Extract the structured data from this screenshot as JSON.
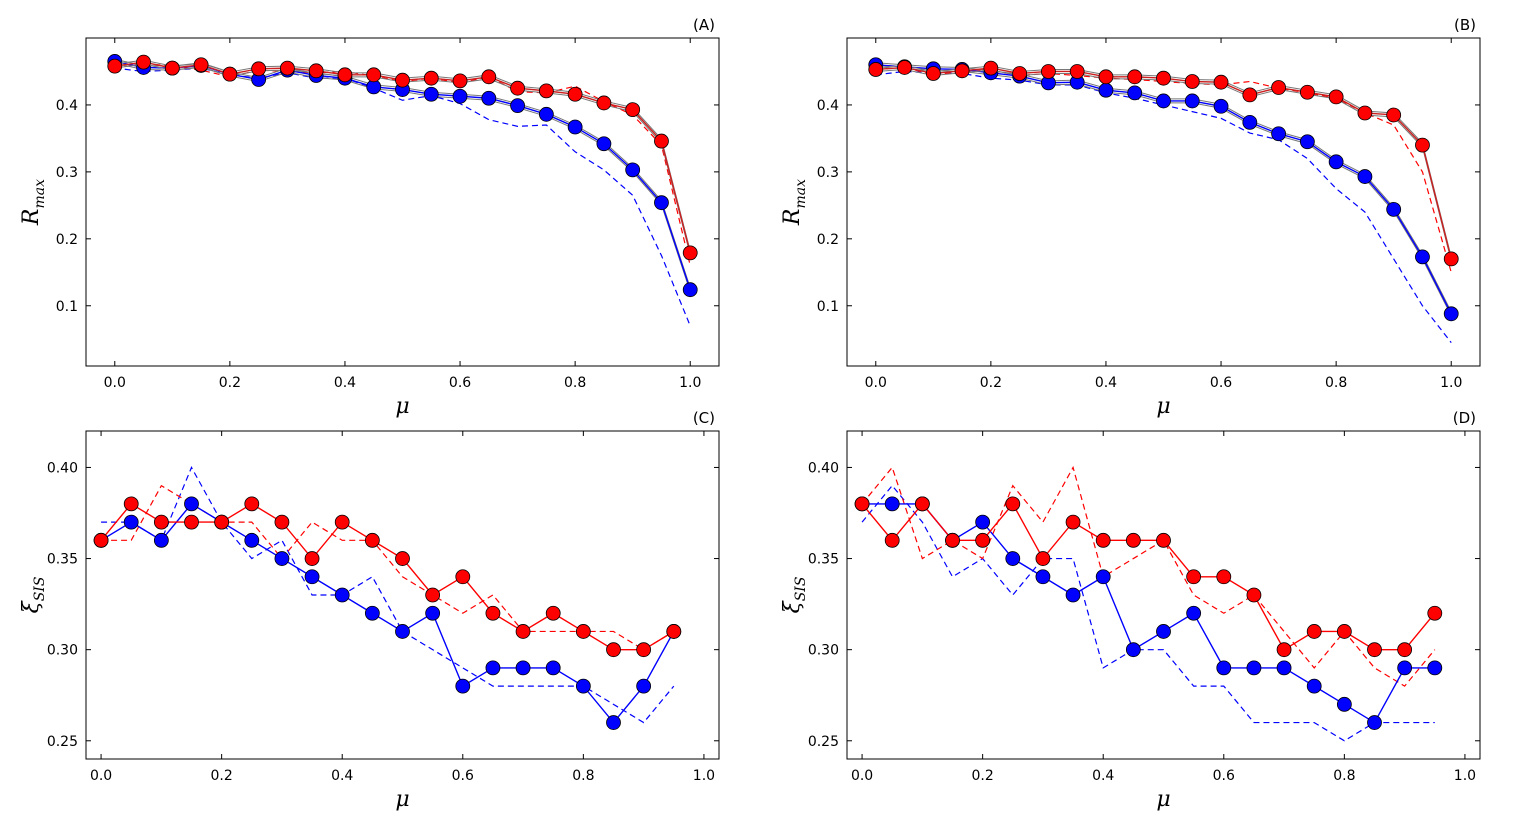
{
  "chart_data": [
    {
      "type": "line",
      "panel": "(A)",
      "xlabel": "μ",
      "ylabel": "R_max",
      "xlim": [
        -0.05,
        1.05
      ],
      "ylim": [
        0.01,
        0.5
      ],
      "xticks": [
        0.0,
        0.2,
        0.4,
        0.6,
        0.8,
        1.0
      ],
      "xtick_labels": [
        "0.0",
        "0.2",
        "0.4",
        "0.6",
        "0.8",
        "1.0"
      ],
      "yticks": [
        0.1,
        0.2,
        0.3,
        0.4
      ],
      "ytick_labels": [
        "0.1",
        "0.2",
        "0.3",
        "0.4"
      ],
      "x": [
        0.0,
        0.05,
        0.1,
        0.15,
        0.2,
        0.25,
        0.3,
        0.35,
        0.4,
        0.45,
        0.5,
        0.55,
        0.6,
        0.65,
        0.7,
        0.75,
        0.8,
        0.85,
        0.9,
        0.95,
        1.0
      ],
      "series": [
        {
          "name": "blue",
          "color": "#0000ff",
          "style": "marker",
          "values": [
            0.465,
            0.456,
            0.455,
            0.459,
            0.446,
            0.438,
            0.452,
            0.444,
            0.44,
            0.427,
            0.423,
            0.416,
            0.413,
            0.41,
            0.399,
            0.386,
            0.367,
            0.342,
            0.303,
            0.254,
            0.124
          ]
        },
        {
          "name": "red",
          "color": "#ff0000",
          "style": "marker",
          "values": [
            0.458,
            0.464,
            0.455,
            0.46,
            0.446,
            0.454,
            0.455,
            0.451,
            0.445,
            0.445,
            0.437,
            0.44,
            0.436,
            0.442,
            0.425,
            0.421,
            0.416,
            0.403,
            0.393,
            0.346,
            0.179
          ]
        },
        {
          "name": "blue dashed",
          "color": "#0000ff",
          "style": "dashed",
          "values": [
            0.455,
            0.45,
            0.452,
            0.455,
            0.445,
            0.44,
            0.448,
            0.44,
            0.44,
            0.425,
            0.407,
            0.414,
            0.402,
            0.378,
            0.368,
            0.37,
            0.33,
            0.303,
            0.265,
            0.175,
            0.07
          ]
        },
        {
          "name": "red dashed",
          "color": "#ff0000",
          "style": "dashed",
          "values": [
            0.455,
            0.462,
            0.458,
            0.452,
            0.442,
            0.452,
            0.45,
            0.448,
            0.45,
            0.443,
            0.435,
            0.44,
            0.433,
            0.442,
            0.42,
            0.418,
            0.428,
            0.405,
            0.385,
            0.34,
            0.16
          ]
        }
      ]
    },
    {
      "type": "line",
      "panel": "(B)",
      "xlabel": "μ",
      "ylabel": "R_max",
      "xlim": [
        -0.05,
        1.05
      ],
      "ylim": [
        0.01,
        0.5
      ],
      "xticks": [
        0.0,
        0.2,
        0.4,
        0.6,
        0.8,
        1.0
      ],
      "xtick_labels": [
        "0.0",
        "0.2",
        "0.4",
        "0.6",
        "0.8",
        "1.0"
      ],
      "yticks": [
        0.1,
        0.2,
        0.3,
        0.4
      ],
      "ytick_labels": [
        "0.1",
        "0.2",
        "0.3",
        "0.4"
      ],
      "x": [
        0.0,
        0.05,
        0.1,
        0.15,
        0.2,
        0.25,
        0.3,
        0.35,
        0.4,
        0.45,
        0.5,
        0.55,
        0.6,
        0.65,
        0.7,
        0.75,
        0.8,
        0.85,
        0.9,
        0.95,
        1.0
      ],
      "series": [
        {
          "name": "blue",
          "color": "#0000ff",
          "style": "marker",
          "values": [
            0.46,
            0.457,
            0.454,
            0.453,
            0.448,
            0.443,
            0.433,
            0.434,
            0.422,
            0.418,
            0.406,
            0.406,
            0.398,
            0.374,
            0.357,
            0.345,
            0.315,
            0.293,
            0.244,
            0.173,
            0.088
          ]
        },
        {
          "name": "red",
          "color": "#ff0000",
          "style": "marker",
          "values": [
            0.453,
            0.456,
            0.447,
            0.451,
            0.455,
            0.447,
            0.45,
            0.45,
            0.442,
            0.442,
            0.44,
            0.435,
            0.434,
            0.415,
            0.426,
            0.419,
            0.412,
            0.388,
            0.385,
            0.34,
            0.17
          ]
        },
        {
          "name": "blue dashed",
          "color": "#0000ff",
          "style": "dashed",
          "values": [
            0.445,
            0.45,
            0.448,
            0.447,
            0.44,
            0.437,
            0.43,
            0.43,
            0.418,
            0.41,
            0.4,
            0.39,
            0.38,
            0.358,
            0.348,
            0.32,
            0.275,
            0.24,
            0.17,
            0.1,
            0.045
          ]
        },
        {
          "name": "red dashed",
          "color": "#ff0000",
          "style": "dashed",
          "values": [
            0.453,
            0.456,
            0.445,
            0.45,
            0.452,
            0.444,
            0.447,
            0.444,
            0.44,
            0.438,
            0.435,
            0.432,
            0.43,
            0.435,
            0.425,
            0.418,
            0.41,
            0.388,
            0.37,
            0.3,
            0.15
          ]
        }
      ]
    },
    {
      "type": "line",
      "panel": "(C)",
      "xlabel": "μ",
      "ylabel": "ξ_SIS",
      "xlim": [
        -0.025,
        1.025
      ],
      "ylim": [
        0.24,
        0.42
      ],
      "xticks": [
        0.0,
        0.2,
        0.4,
        0.6,
        0.8,
        1.0
      ],
      "xtick_labels": [
        "0.0",
        "0.2",
        "0.4",
        "0.6",
        "0.8",
        "1.0"
      ],
      "yticks": [
        0.25,
        0.3,
        0.35,
        0.4
      ],
      "ytick_labels": [
        "0.25",
        "0.30",
        "0.35",
        "0.40"
      ],
      "x": [
        0.0,
        0.05,
        0.1,
        0.15,
        0.2,
        0.25,
        0.3,
        0.35,
        0.4,
        0.45,
        0.5,
        0.55,
        0.6,
        0.65,
        0.7,
        0.75,
        0.8,
        0.85,
        0.9,
        0.95
      ],
      "series": [
        {
          "name": "blue",
          "color": "#0000ff",
          "style": "marker",
          "values": [
            0.36,
            0.37,
            0.36,
            0.38,
            0.37,
            0.36,
            0.35,
            0.34,
            0.33,
            0.32,
            0.31,
            0.32,
            0.28,
            0.29,
            0.29,
            0.29,
            0.28,
            0.26,
            0.28,
            0.31
          ]
        },
        {
          "name": "red",
          "color": "#ff0000",
          "style": "marker",
          "values": [
            0.36,
            0.38,
            0.37,
            0.37,
            0.37,
            0.38,
            0.37,
            0.35,
            0.37,
            0.36,
            0.35,
            0.33,
            0.34,
            0.32,
            0.31,
            0.32,
            0.31,
            0.3,
            0.3,
            0.31
          ]
        },
        {
          "name": "blue dashed",
          "color": "#0000ff",
          "style": "dashed",
          "values": [
            0.37,
            0.37,
            0.36,
            0.4,
            0.37,
            0.35,
            0.36,
            0.33,
            0.33,
            0.34,
            0.31,
            0.3,
            0.29,
            0.28,
            0.28,
            0.28,
            0.28,
            0.27,
            0.26,
            0.28
          ]
        },
        {
          "name": "red dashed",
          "color": "#ff0000",
          "style": "dashed",
          "values": [
            0.36,
            0.36,
            0.39,
            0.38,
            0.37,
            0.37,
            0.35,
            0.37,
            0.36,
            0.36,
            0.34,
            0.33,
            0.32,
            0.33,
            0.31,
            0.31,
            0.31,
            0.31,
            0.3,
            0.31
          ]
        }
      ]
    },
    {
      "type": "line",
      "panel": "(D)",
      "xlabel": "μ",
      "ylabel": "ξ_SIS",
      "xlim": [
        -0.025,
        1.025
      ],
      "ylim": [
        0.24,
        0.42
      ],
      "xticks": [
        0.0,
        0.2,
        0.4,
        0.6,
        0.8,
        1.0
      ],
      "xtick_labels": [
        "0.0",
        "0.2",
        "0.4",
        "0.6",
        "0.8",
        "1.0"
      ],
      "yticks": [
        0.25,
        0.3,
        0.35,
        0.4
      ],
      "ytick_labels": [
        "0.25",
        "0.30",
        "0.35",
        "0.40"
      ],
      "x": [
        0.0,
        0.05,
        0.1,
        0.15,
        0.2,
        0.25,
        0.3,
        0.35,
        0.4,
        0.45,
        0.5,
        0.55,
        0.6,
        0.65,
        0.7,
        0.75,
        0.8,
        0.85,
        0.9,
        0.95
      ],
      "series": [
        {
          "name": "blue",
          "color": "#0000ff",
          "style": "marker",
          "values": [
            0.38,
            0.38,
            0.38,
            0.36,
            0.37,
            0.35,
            0.34,
            0.33,
            0.34,
            0.3,
            0.31,
            0.32,
            0.29,
            0.29,
            0.29,
            0.28,
            0.27,
            0.26,
            0.29,
            0.29
          ]
        },
        {
          "name": "red",
          "color": "#ff0000",
          "style": "marker",
          "values": [
            0.38,
            0.36,
            0.38,
            0.36,
            0.36,
            0.38,
            0.35,
            0.37,
            0.36,
            0.36,
            0.36,
            0.34,
            0.34,
            0.33,
            0.3,
            0.31,
            0.31,
            0.3,
            0.3,
            0.32
          ]
        },
        {
          "name": "blue dashed",
          "color": "#0000ff",
          "style": "dashed",
          "values": [
            0.37,
            0.39,
            0.37,
            0.34,
            0.35,
            0.33,
            0.35,
            0.35,
            0.29,
            0.3,
            0.3,
            0.28,
            0.28,
            0.26,
            0.26,
            0.26,
            0.25,
            0.26,
            0.26,
            0.26
          ]
        },
        {
          "name": "red dashed",
          "color": "#ff0000",
          "style": "dashed",
          "values": [
            0.38,
            0.4,
            0.35,
            0.36,
            0.35,
            0.39,
            0.37,
            0.4,
            0.34,
            0.35,
            0.36,
            0.33,
            0.32,
            0.33,
            0.31,
            0.29,
            0.31,
            0.29,
            0.28,
            0.3
          ]
        }
      ]
    }
  ]
}
